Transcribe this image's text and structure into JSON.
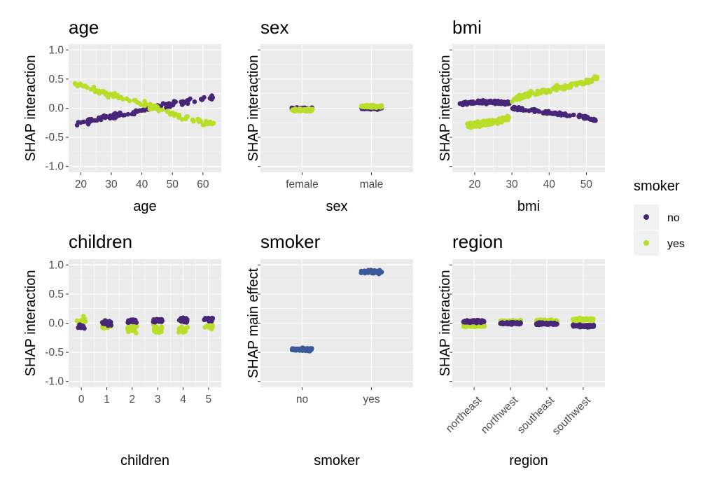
{
  "legend": {
    "title": "smoker",
    "placement": "right",
    "items": [
      {
        "label": "no",
        "color": "#482677"
      },
      {
        "label": "yes",
        "color": "#b8de29"
      }
    ]
  },
  "colors": {
    "no": "#482677",
    "yes": "#b8de29",
    "main": "#3b5998",
    "panel_bg": "#ebebeb",
    "grid": "#ffffff"
  },
  "chart_data": [
    {
      "id": "age",
      "type": "scatter",
      "title": "age",
      "xlabel": "age",
      "ylabel": "SHAP interaction",
      "x_kind": "numeric",
      "xlim": [
        16,
        66
      ],
      "ylim": [
        -1.1,
        1.1
      ],
      "xticks": [
        20,
        30,
        40,
        50,
        60
      ],
      "yticks": [
        -1.0,
        -0.5,
        0.0,
        0.5,
        1.0
      ],
      "ytick_labels": [
        "-1.0",
        "-0.5",
        "0.0",
        "0.5",
        "1.0"
      ],
      "grid": true,
      "series": [
        {
          "name": "no",
          "lines": [
            {
              "x": [
                18,
                25,
                30,
                35,
                40,
                45,
                50,
                55,
                64
              ],
              "y": [
                -0.28,
                -0.2,
                -0.14,
                -0.09,
                -0.04,
                0.02,
                0.07,
                0.12,
                0.19
              ]
            }
          ],
          "spread": 0.06,
          "x_spread": 0
        },
        {
          "name": "yes",
          "lines": [
            {
              "x": [
                18,
                25,
                30,
                35,
                40,
                45,
                50,
                55,
                64
              ],
              "y": [
                0.45,
                0.3,
                0.23,
                0.15,
                0.08,
                0.0,
                -0.1,
                -0.18,
                -0.28
              ]
            }
          ],
          "spread": 0.07,
          "x_spread": 0
        }
      ]
    },
    {
      "id": "sex",
      "type": "scatter",
      "title": "sex",
      "xlabel": "sex",
      "ylabel": "SHAP interaction",
      "x_kind": "categorical",
      "categories": [
        "female",
        "male"
      ],
      "ylim": [
        -1.1,
        1.1
      ],
      "yticks": [
        -1.0,
        -0.5,
        0.0,
        0.5,
        1.0
      ],
      "ytick_labels": [
        "",
        "",
        "",
        "",
        ""
      ],
      "grid": true,
      "series": [
        {
          "name": "no",
          "groups": [
            {
              "cat": 0,
              "y": -0.01
            },
            {
              "cat": 1,
              "y": 0.0
            }
          ],
          "spread": 0.03
        },
        {
          "name": "yes",
          "groups": [
            {
              "cat": 0,
              "y": -0.03
            },
            {
              "cat": 1,
              "y": 0.03
            }
          ],
          "spread": 0.03
        }
      ]
    },
    {
      "id": "bmi",
      "type": "scatter",
      "title": "bmi",
      "xlabel": "bmi",
      "ylabel": "SHAP interaction",
      "x_kind": "numeric",
      "xlim": [
        14,
        55
      ],
      "ylim": [
        -1.1,
        1.1
      ],
      "xticks": [
        20,
        30,
        40,
        50
      ],
      "yticks": [
        -1.0,
        -0.5,
        0.0,
        0.5,
        1.0
      ],
      "ytick_labels": [
        "",
        "",
        "",
        "",
        ""
      ],
      "grid": true,
      "series": [
        {
          "name": "no",
          "lines": [
            {
              "x": [
                16,
                20,
                25,
                29.5
              ],
              "y": [
                0.07,
                0.1,
                0.1,
                0.09
              ]
            },
            {
              "x": [
                30,
                35,
                40,
                45,
                50,
                53
              ],
              "y": [
                0.0,
                -0.04,
                -0.08,
                -0.12,
                -0.16,
                -0.22
              ]
            }
          ],
          "spread": 0.04,
          "x_spread": 0
        },
        {
          "name": "yes",
          "lines": [
            {
              "x": [
                18,
                22,
                26,
                29.5
              ],
              "y": [
                -0.3,
                -0.27,
                -0.22,
                -0.17
              ]
            },
            {
              "x": [
                30,
                35,
                40,
                45,
                50,
                53
              ],
              "y": [
                0.15,
                0.24,
                0.3,
                0.38,
                0.45,
                0.53
              ]
            }
          ],
          "spread": 0.07,
          "x_spread": 0
        }
      ]
    },
    {
      "id": "children",
      "type": "scatter",
      "title": "children",
      "xlabel": "children",
      "ylabel": "SHAP interaction",
      "x_kind": "numeric_jitter",
      "xlim": [
        -0.5,
        5.5
      ],
      "ylim": [
        -1.1,
        1.1
      ],
      "xticks": [
        0,
        1,
        2,
        3,
        4,
        5
      ],
      "yticks": [
        -1.0,
        -0.5,
        0.0,
        0.5,
        1.0
      ],
      "ytick_labels": [
        "-1.0",
        "-0.5",
        "0.0",
        "0.5",
        "1.0"
      ],
      "grid": true,
      "series": [
        {
          "name": "yes",
          "lines": [
            {
              "x": [
                0,
                1,
                2,
                3,
                4,
                5
              ],
              "y": [
                0.08,
                -0.03,
                -0.1,
                -0.1,
                -0.12,
                -0.05
              ]
            }
          ],
          "spread": 0.08,
          "x_spread": 0.18
        },
        {
          "name": "no",
          "lines": [
            {
              "x": [
                0,
                1,
                2,
                3,
                4,
                5
              ],
              "y": [
                -0.08,
                0.01,
                0.05,
                0.05,
                0.06,
                0.07
              ]
            }
          ],
          "spread": 0.06,
          "x_spread": 0.18
        }
      ]
    },
    {
      "id": "smoker",
      "type": "scatter",
      "title": "smoker",
      "xlabel": "smoker",
      "ylabel": "SHAP main effect",
      "x_kind": "categorical",
      "categories": [
        "no",
        "yes"
      ],
      "ylim": [
        -1.1,
        1.1
      ],
      "yticks": [
        -1.0,
        -0.5,
        0.0,
        0.5,
        1.0
      ],
      "ytick_labels": [
        "",
        "",
        "",
        "",
        ""
      ],
      "grid": true,
      "series": [
        {
          "name": "main",
          "groups": [
            {
              "cat": 0,
              "y": -0.45
            },
            {
              "cat": 1,
              "y": 0.88
            }
          ],
          "spread": 0.04
        }
      ]
    },
    {
      "id": "region",
      "type": "scatter",
      "title": "region",
      "xlabel": "region",
      "ylabel": "SHAP interaction",
      "x_kind": "categorical",
      "categories": [
        "northeast",
        "northwest",
        "southeast",
        "southwest"
      ],
      "ylim": [
        -1.1,
        1.1
      ],
      "yticks": [
        -1.0,
        -0.5,
        0.0,
        0.5,
        1.0
      ],
      "ytick_labels": [
        "",
        "",
        "",
        "",
        ""
      ],
      "rotate_x": true,
      "grid": true,
      "series": [
        {
          "name": "yes",
          "groups": [
            {
              "cat": 0,
              "y": -0.04
            },
            {
              "cat": 1,
              "y": 0.02
            },
            {
              "cat": 2,
              "y": 0.03
            },
            {
              "cat": 3,
              "y": 0.06
            }
          ],
          "spread": 0.04
        },
        {
          "name": "no",
          "groups": [
            {
              "cat": 0,
              "y": 0.03
            },
            {
              "cat": 1,
              "y": 0.0
            },
            {
              "cat": 2,
              "y": -0.01
            },
            {
              "cat": 3,
              "y": -0.05
            }
          ],
          "spread": 0.03
        }
      ]
    }
  ]
}
